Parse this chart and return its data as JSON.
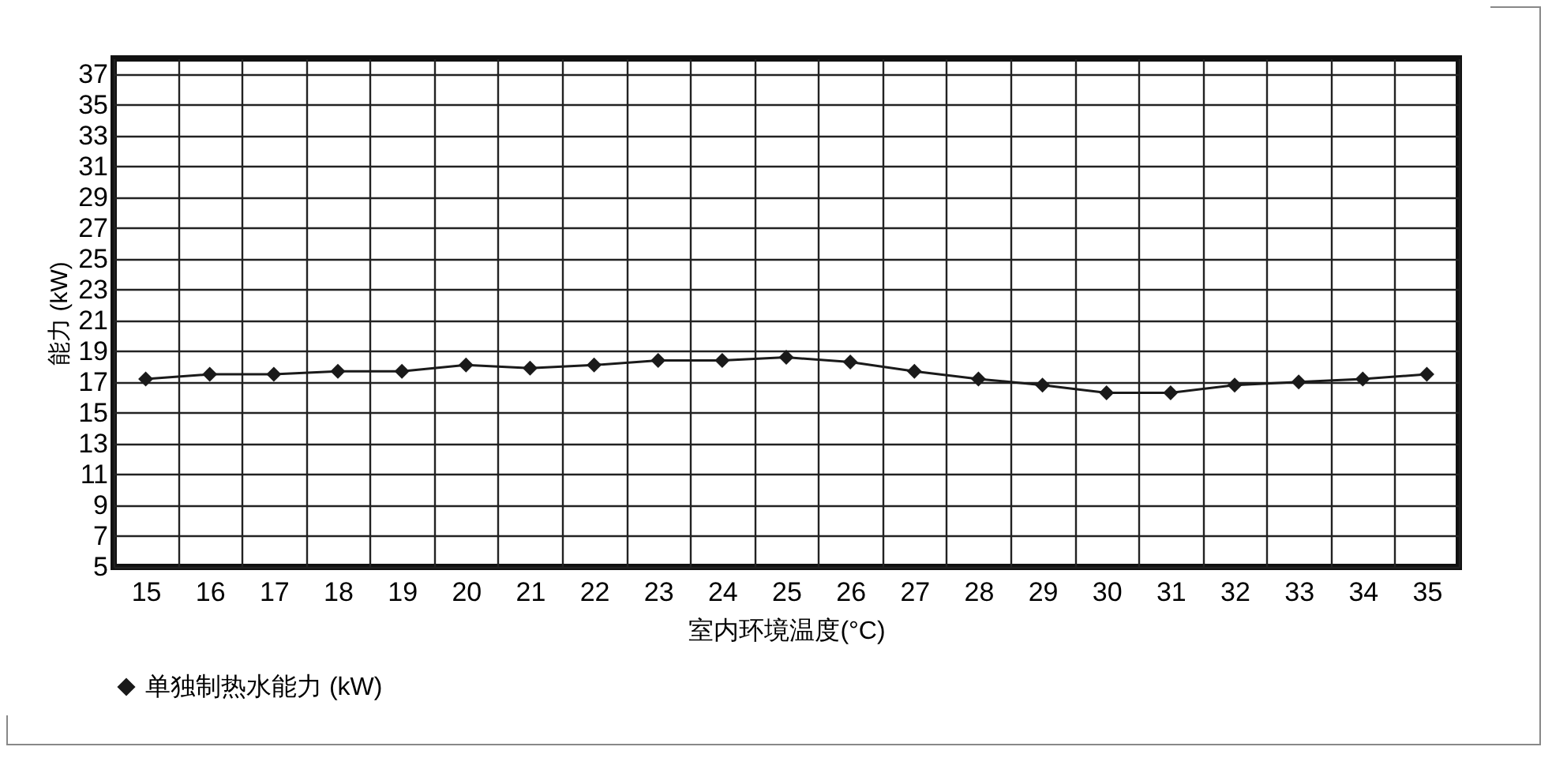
{
  "chart_data": {
    "type": "line",
    "xlabel": "室内环境温度(°C)",
    "ylabel": "能力 (kW)",
    "categories": [
      "15",
      "16",
      "17",
      "18",
      "19",
      "20",
      "21",
      "22",
      "23",
      "24",
      "25",
      "26",
      "27",
      "28",
      "29",
      "30",
      "31",
      "32",
      "33",
      "34",
      "35"
    ],
    "series": [
      {
        "name": "单独制热水能力 (kW)",
        "color": "#1a1a1a",
        "values": [
          17.2,
          17.5,
          17.5,
          17.7,
          17.7,
          18.1,
          17.9,
          18.1,
          18.4,
          18.4,
          18.6,
          18.3,
          17.7,
          17.2,
          16.8,
          16.3,
          16.3,
          16.8,
          17.0,
          17.2,
          17.5
        ]
      }
    ],
    "ylim": [
      5,
      38
    ],
    "yticks": [
      5,
      7,
      9,
      11,
      13,
      15,
      17,
      19,
      21,
      23,
      25,
      27,
      29,
      31,
      33,
      35,
      37
    ],
    "grid": true,
    "legend": "bottom",
    "marker": "diamond",
    "line_style": "solid"
  }
}
